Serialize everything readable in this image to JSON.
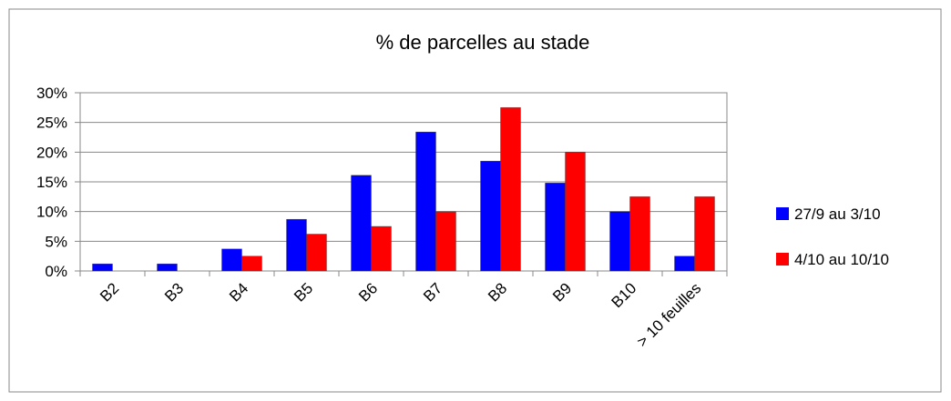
{
  "chart_data": {
    "type": "bar",
    "title": "% de parcelles au stade",
    "categories": [
      "B2",
      "B3",
      "B4",
      "B5",
      "B6",
      "B7",
      "B8",
      "B9",
      "B10",
      "> 10 feuilles"
    ],
    "series": [
      {
        "name": "27/9 au 3/10",
        "color": "#0000ff",
        "values": [
          1.2,
          1.2,
          3.7,
          8.7,
          16.1,
          23.4,
          18.5,
          14.8,
          10,
          2.5
        ]
      },
      {
        "name": "4/10 au 10/10",
        "color": "#ff0000",
        "values": [
          0,
          0,
          2.5,
          6.2,
          7.5,
          10,
          27.5,
          20,
          12.5,
          12.5
        ]
      }
    ],
    "ylim": [
      0,
      30
    ],
    "yticks": [
      {
        "value": 0,
        "label": "0%"
      },
      {
        "value": 5,
        "label": "5%"
      },
      {
        "value": 10,
        "label": "10%"
      },
      {
        "value": 15,
        "label": "15%"
      },
      {
        "value": 20,
        "label": "20%"
      },
      {
        "value": 25,
        "label": "25%"
      },
      {
        "value": 30,
        "label": "30%"
      }
    ],
    "grid": true,
    "legend": "right"
  }
}
